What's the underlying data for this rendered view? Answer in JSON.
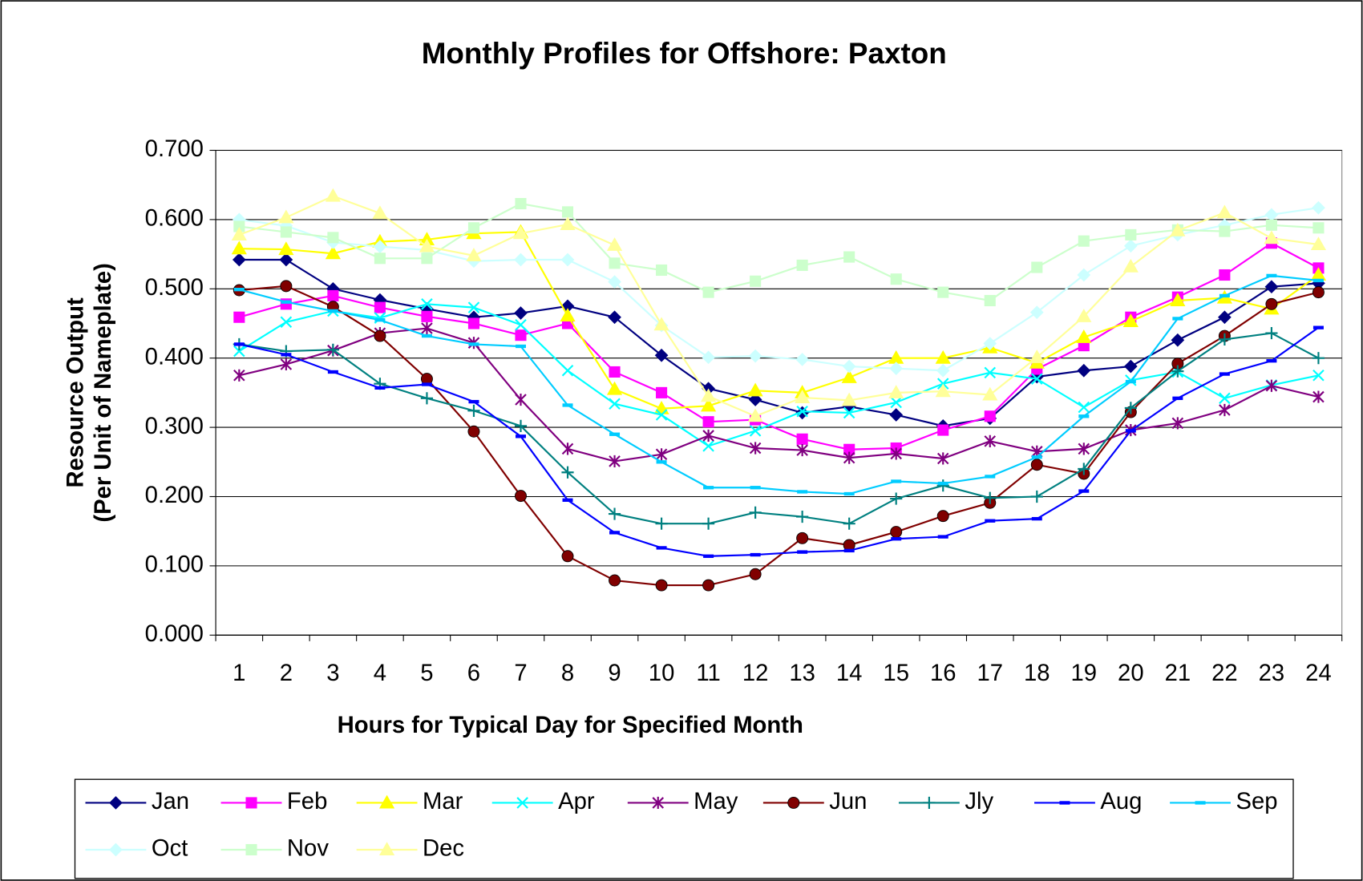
{
  "chart_data": {
    "type": "line",
    "title": "Monthly Profiles for Offshore: Paxton",
    "x_label": "Hours for Typical Day for Specified Month",
    "y_label": [
      "Resource Output",
      "(Per Unit of Nameplate)"
    ],
    "categories": [
      1,
      2,
      3,
      4,
      5,
      6,
      7,
      8,
      9,
      10,
      11,
      12,
      13,
      14,
      15,
      16,
      17,
      18,
      19,
      20,
      21,
      22,
      23,
      24
    ],
    "ylim": [
      0,
      0.7
    ],
    "yticks": [
      {
        "value": 0,
        "label": "0.000"
      },
      {
        "value": 0.1,
        "label": "0.100"
      },
      {
        "value": 0.2,
        "label": "0.200"
      },
      {
        "value": 0.3,
        "label": "0.300"
      },
      {
        "value": 0.4,
        "label": "0.400"
      },
      {
        "value": 0.5,
        "label": "0.500"
      },
      {
        "value": 0.6,
        "label": "0.600"
      },
      {
        "value": 0.7,
        "label": "0.700"
      }
    ],
    "grid": true,
    "legend": "bottom",
    "series": [
      {
        "name": "Jan",
        "color": "#000080",
        "marker": "diamond",
        "values": [
          0.542,
          0.542,
          0.5,
          0.484,
          0.471,
          0.459,
          0.465,
          0.475,
          0.459,
          0.404,
          0.356,
          0.34,
          0.321,
          0.33,
          0.318,
          0.302,
          0.313,
          0.373,
          0.382,
          0.388,
          0.426,
          0.459,
          0.503,
          0.508
        ]
      },
      {
        "name": "Feb",
        "color": "#ff00ff",
        "marker": "square",
        "values": [
          0.459,
          0.478,
          0.49,
          0.473,
          0.46,
          0.45,
          0.433,
          0.45,
          0.38,
          0.35,
          0.308,
          0.311,
          0.283,
          0.268,
          0.27,
          0.296,
          0.316,
          0.384,
          0.418,
          0.459,
          0.488,
          0.52,
          0.566,
          0.53
        ]
      },
      {
        "name": "Mar",
        "color": "#ffff00",
        "marker": "triangle",
        "values": [
          0.558,
          0.557,
          0.551,
          0.568,
          0.571,
          0.58,
          0.582,
          0.461,
          0.355,
          0.327,
          0.331,
          0.353,
          0.35,
          0.372,
          0.4,
          0.4,
          0.415,
          0.393,
          0.43,
          0.453,
          0.483,
          0.487,
          0.471,
          0.52
        ]
      },
      {
        "name": "Apr",
        "color": "#00ffff",
        "marker": "x",
        "values": [
          0.41,
          0.452,
          0.468,
          0.458,
          0.478,
          0.473,
          0.448,
          0.382,
          0.334,
          0.318,
          0.273,
          0.295,
          0.323,
          0.321,
          0.336,
          0.363,
          0.379,
          0.37,
          0.329,
          0.368,
          0.38,
          0.342,
          0.361,
          0.375
        ]
      },
      {
        "name": "May",
        "color": "#800080",
        "marker": "star",
        "values": [
          0.375,
          0.391,
          0.411,
          0.436,
          0.443,
          0.422,
          0.34,
          0.269,
          0.251,
          0.261,
          0.288,
          0.27,
          0.267,
          0.256,
          0.262,
          0.255,
          0.28,
          0.265,
          0.269,
          0.296,
          0.306,
          0.325,
          0.36,
          0.344
        ]
      },
      {
        "name": "Jun",
        "color": "#800000",
        "marker": "circle",
        "values": [
          0.498,
          0.504,
          0.474,
          0.432,
          0.37,
          0.294,
          0.201,
          0.114,
          0.079,
          0.072,
          0.072,
          0.088,
          0.14,
          0.13,
          0.149,
          0.172,
          0.191,
          0.246,
          0.233,
          0.322,
          0.392,
          0.432,
          0.478,
          0.495
        ]
      },
      {
        "name": "Jly",
        "color": "#008080",
        "marker": "plus",
        "values": [
          0.42,
          0.41,
          0.412,
          0.363,
          0.342,
          0.324,
          0.302,
          0.235,
          0.175,
          0.161,
          0.161,
          0.177,
          0.171,
          0.161,
          0.197,
          0.216,
          0.198,
          0.2,
          0.24,
          0.328,
          0.381,
          0.427,
          0.436,
          0.4
        ]
      },
      {
        "name": "Aug",
        "color": "#0000ff",
        "marker": "dash",
        "values": [
          0.42,
          0.405,
          0.38,
          0.357,
          0.362,
          0.337,
          0.287,
          0.195,
          0.148,
          0.126,
          0.114,
          0.116,
          0.12,
          0.122,
          0.139,
          0.142,
          0.165,
          0.168,
          0.208,
          0.295,
          0.342,
          0.377,
          0.396,
          0.444
        ]
      },
      {
        "name": "Sep",
        "color": "#00ccff",
        "marker": "dash",
        "values": [
          0.499,
          0.481,
          0.468,
          0.455,
          0.432,
          0.42,
          0.417,
          0.332,
          0.29,
          0.25,
          0.213,
          0.213,
          0.207,
          0.204,
          0.222,
          0.219,
          0.229,
          0.257,
          0.316,
          0.366,
          0.457,
          0.49,
          0.519,
          0.512
        ]
      },
      {
        "name": "Oct",
        "color": "#ccffff",
        "marker": "diamond",
        "values": [
          0.6,
          0.591,
          0.567,
          0.561,
          0.556,
          0.54,
          0.542,
          0.542,
          0.51,
          0.447,
          0.401,
          0.403,
          0.398,
          0.388,
          0.385,
          0.382,
          0.421,
          0.466,
          0.52,
          0.562,
          0.578,
          0.592,
          0.607,
          0.617
        ]
      },
      {
        "name": "Nov",
        "color": "#ccffcc",
        "marker": "square",
        "values": [
          0.59,
          0.582,
          0.574,
          0.544,
          0.544,
          0.588,
          0.623,
          0.611,
          0.537,
          0.527,
          0.495,
          0.511,
          0.534,
          0.546,
          0.514,
          0.495,
          0.483,
          0.531,
          0.569,
          0.578,
          0.585,
          0.583,
          0.592,
          0.588
        ]
      },
      {
        "name": "Dec",
        "color": "#ffff99",
        "marker": "triangle",
        "values": [
          0.578,
          0.603,
          0.634,
          0.609,
          0.561,
          0.548,
          0.58,
          0.593,
          0.563,
          0.448,
          0.345,
          0.316,
          0.343,
          0.339,
          0.35,
          0.352,
          0.347,
          0.401,
          0.46,
          0.532,
          0.584,
          0.61,
          0.573,
          0.564
        ]
      }
    ]
  }
}
